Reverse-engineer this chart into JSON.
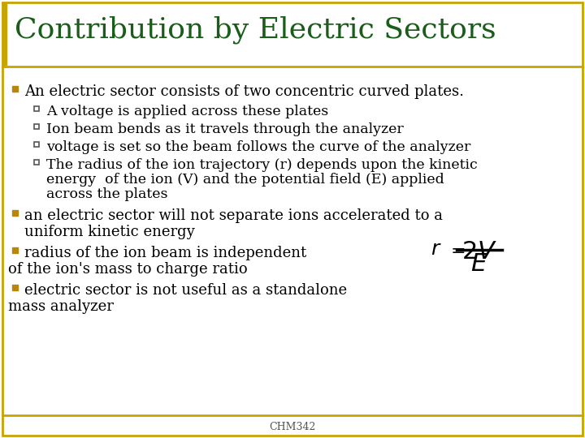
{
  "title": "Contribution by Electric Sectors",
  "title_color": "#1a5c1a",
  "title_fontsize": 26,
  "background_color": "#ffffff",
  "border_color": "#c8a400",
  "text_color": "#000000",
  "bullet_color": "#b8860b",
  "footer": "CHM342",
  "bullet1": "An electric sector consists of two concentric curved plates.",
  "sub_bullet1": "A voltage is applied across these plates",
  "sub_bullet2": "Ion beam bends as it travels through the analyzer",
  "sub_bullet3": "voltage is set so the beam follows the curve of the analyzer",
  "sub_bullet4a": "The radius of the ion trajectory (r) depends upon the kinetic",
  "sub_bullet4b": "energy  of the ion (V) and the potential field (E) applied",
  "sub_bullet4c": "across the plates",
  "bullet2a": "an electric sector will not separate ions accelerated to a",
  "bullet2b": "uniform kinetic energy",
  "bullet3": "radius of the ion beam is independent",
  "cont3": "of the ion's mass to charge ratio",
  "bullet4": "electric sector is not useful as a standalone",
  "cont4": "mass analyzer",
  "font_family": "DejaVu Serif",
  "body_fontsize": 13,
  "sub_fontsize": 12.5,
  "footer_fontsize": 9
}
